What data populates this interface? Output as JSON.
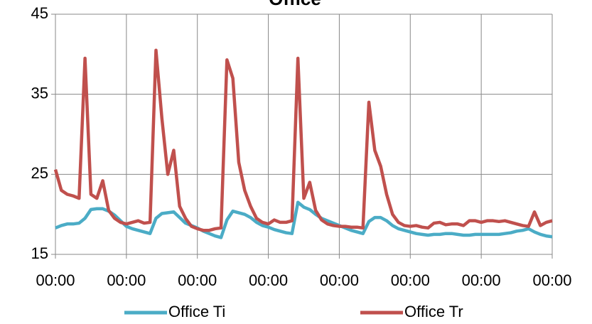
{
  "chart_data": {
    "type": "line",
    "title": "Office",
    "x": [
      0,
      2,
      4,
      6,
      8,
      10,
      12,
      14,
      16,
      18,
      20,
      22,
      24,
      26,
      28,
      30,
      32,
      34,
      36,
      38,
      40,
      42,
      44,
      46,
      48,
      50,
      52,
      54,
      56,
      58,
      60,
      62,
      64,
      66,
      68,
      70,
      72,
      74,
      76,
      78,
      80,
      82,
      84,
      86,
      88,
      90,
      92,
      94,
      96,
      98,
      100,
      102,
      104,
      106,
      108,
      110,
      112,
      114,
      116,
      118,
      120,
      122,
      124,
      126,
      128,
      130,
      132,
      134,
      136,
      138,
      140,
      142,
      144,
      146,
      148,
      150,
      152,
      154,
      156,
      158,
      160,
      162,
      164,
      166,
      168
    ],
    "series": [
      {
        "name": "Office Ti",
        "color": "#4bacc6",
        "values": [
          18.3,
          18.6,
          18.8,
          18.8,
          18.9,
          19.5,
          20.6,
          20.7,
          20.7,
          20.4,
          19.9,
          19.2,
          18.5,
          18.2,
          18.0,
          17.8,
          17.6,
          19.5,
          20.1,
          20.2,
          20.3,
          19.6,
          18.9,
          18.6,
          18.3,
          17.9,
          17.6,
          17.3,
          17.1,
          19.3,
          20.4,
          20.2,
          20.0,
          19.6,
          19.0,
          18.6,
          18.4,
          18.1,
          17.9,
          17.7,
          17.6,
          21.5,
          20.9,
          20.6,
          20.0,
          19.5,
          19.2,
          18.9,
          18.6,
          18.3,
          18.0,
          17.8,
          17.6,
          19.1,
          19.6,
          19.6,
          19.2,
          18.6,
          18.2,
          18.0,
          17.8,
          17.6,
          17.5,
          17.4,
          17.5,
          17.5,
          17.6,
          17.6,
          17.5,
          17.4,
          17.4,
          17.5,
          17.5,
          17.5,
          17.5,
          17.5,
          17.6,
          17.7,
          17.9,
          18.0,
          18.2,
          17.8,
          17.5,
          17.3,
          17.2
        ]
      },
      {
        "name": "Office Tr",
        "color": "#c0504d",
        "values": [
          25.6,
          23.0,
          22.5,
          22.3,
          22.0,
          39.5,
          22.5,
          22.0,
          24.2,
          20.5,
          19.5,
          19.0,
          18.8,
          19.0,
          19.2,
          18.9,
          19.0,
          40.5,
          32.0,
          25.0,
          28.0,
          21.0,
          19.5,
          18.5,
          18.2,
          18.0,
          18.0,
          18.2,
          18.3,
          39.3,
          37.0,
          26.5,
          23.0,
          21.0,
          19.5,
          19.0,
          18.8,
          19.3,
          19.0,
          19.0,
          19.2,
          39.5,
          22.0,
          24.0,
          20.5,
          19.3,
          18.8,
          18.6,
          18.5,
          18.5,
          18.4,
          18.4,
          18.3,
          34.0,
          28.0,
          26.0,
          22.5,
          20.0,
          19.0,
          18.6,
          18.5,
          18.6,
          18.4,
          18.3,
          18.9,
          19.0,
          18.7,
          18.8,
          18.8,
          18.6,
          19.2,
          19.2,
          19.0,
          19.2,
          19.2,
          19.1,
          19.2,
          19.0,
          18.8,
          18.6,
          18.5,
          20.3,
          18.6,
          19.0,
          19.2
        ]
      }
    ],
    "xlim": [
      0,
      168
    ],
    "xticks": [
      {
        "value": 0,
        "label": "00:00"
      },
      {
        "value": 24,
        "label": "00:00"
      },
      {
        "value": 48,
        "label": "00:00"
      },
      {
        "value": 72,
        "label": "00:00"
      },
      {
        "value": 96,
        "label": "00:00"
      },
      {
        "value": 120,
        "label": "00:00"
      },
      {
        "value": 144,
        "label": "00:00"
      },
      {
        "value": 168,
        "label": "00:00"
      }
    ],
    "ylim": [
      15,
      45
    ],
    "yticks": [
      15,
      25,
      35,
      45
    ],
    "grid": true,
    "legend": "bottom"
  }
}
